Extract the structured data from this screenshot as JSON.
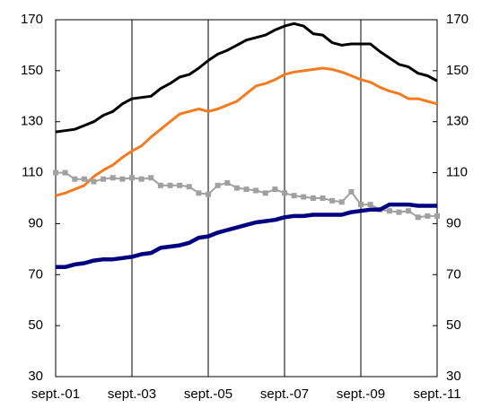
{
  "chart_data": {
    "type": "line",
    "categories": [
      "sept.-01",
      null,
      null,
      null,
      null,
      null,
      null,
      null,
      "sept.-03",
      null,
      null,
      null,
      null,
      null,
      null,
      null,
      "sept.-05",
      null,
      null,
      null,
      null,
      null,
      null,
      null,
      "sept.-07",
      null,
      null,
      null,
      null,
      null,
      null,
      null,
      "sept.-09",
      null,
      null,
      null,
      null,
      null,
      null,
      null,
      "sept.-11"
    ],
    "series": [
      {
        "color": "#000000",
        "width": 3,
        "values": [
          126,
          126.5,
          127,
          128.5,
          130,
          132.5,
          134,
          137,
          139,
          139.5,
          140,
          143,
          145,
          147.5,
          148.5,
          151,
          154,
          156.5,
          158,
          160,
          162,
          163,
          164,
          166,
          167.5,
          168.5,
          167.5,
          164.5,
          164,
          161,
          160,
          160.5,
          160.5,
          160.5,
          157.5,
          155,
          152.5,
          151.5,
          149,
          148,
          146
        ]
      },
      {
        "color": "#f57b20",
        "width": 3,
        "values": [
          101,
          102,
          103.5,
          105,
          108.5,
          111,
          113,
          116,
          118.5,
          120.5,
          124,
          127,
          130,
          133,
          134,
          135,
          134,
          135,
          136.5,
          138,
          141,
          144,
          145,
          146.5,
          148.5,
          149.5,
          150,
          150.5,
          151,
          150.5,
          149.5,
          148,
          146.5,
          145.5,
          143.5,
          142,
          141,
          139,
          139,
          138,
          137
        ]
      },
      {
        "color": "#a0a0a0",
        "width": 2,
        "marker": "square",
        "values": [
          110,
          110,
          107.5,
          107.5,
          106.5,
          107.5,
          108,
          107.5,
          108,
          107.5,
          108,
          105,
          105,
          105,
          104.5,
          102,
          101.5,
          105,
          106,
          104,
          103.5,
          103,
          102,
          103.5,
          102,
          101,
          100.5,
          100,
          100,
          99,
          98.5,
          102.5,
          97.5,
          97.5,
          95.5,
          95,
          94.5,
          95,
          92.5,
          93,
          93
        ]
      },
      {
        "color": "#000080",
        "width": 4.5,
        "values": [
          73,
          73,
          74,
          74.5,
          75.5,
          76,
          76,
          76.5,
          77,
          78,
          78.5,
          80.5,
          81,
          81.5,
          82.5,
          84.5,
          85,
          86.5,
          87.5,
          88.5,
          89.5,
          90.5,
          91,
          91.5,
          92.5,
          93,
          93,
          93.5,
          93.5,
          93.5,
          93.5,
          94.5,
          95,
          95.5,
          95.5,
          97.5,
          97.5,
          97.5,
          97,
          97,
          97
        ]
      }
    ],
    "ylim": [
      30,
      170
    ],
    "yticks": [
      30,
      50,
      70,
      90,
      110,
      130,
      150,
      170
    ],
    "y2lim": [
      30,
      170
    ],
    "y2ticks": [
      30,
      50,
      70,
      90,
      110,
      130,
      150,
      170
    ],
    "grid": "x"
  }
}
